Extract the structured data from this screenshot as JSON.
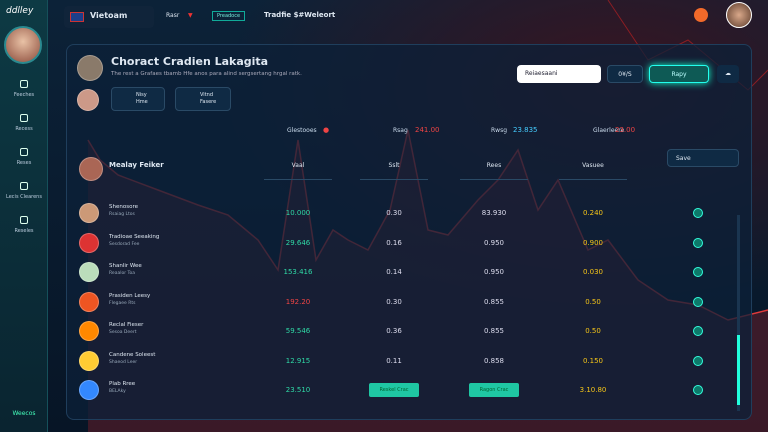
{
  "sidebar": {
    "logo": "ddlley",
    "nav": [
      "Feeches",
      "Recess",
      "Reses",
      "Lecis Clearens",
      "Reseles"
    ],
    "footer": "Weecos"
  },
  "topbar": {
    "country": "Vietoam",
    "menu": "Rasr",
    "badge": "Preadoce",
    "title": "Tradfie $#Weleort"
  },
  "panel": {
    "title": "Choract Cradien Lakagita",
    "subtitle": "The rest a Grafaes tbamb Hfe anos para alind sergsertang hrgal ratk.",
    "chips": [
      {
        "label": "Nisy",
        "sub": "Hme"
      },
      {
        "label": "Vitnd",
        "sub": "Fasere"
      }
    ],
    "search": "Reiaesaani",
    "actions": [
      "0¥/S",
      "Rapy"
    ],
    "stats": [
      {
        "label": "Glestooes",
        "value": "●"
      },
      {
        "label": "Rsag",
        "value": "241.00"
      },
      {
        "label": "Rwsg",
        "value": "23.835"
      },
      {
        "label": "Glaerleere",
        "value": "23.00"
      }
    ],
    "table": {
      "title": "Mealay Feiker",
      "save": "Save",
      "columns": [
        "Vaal",
        "Sslt",
        "Rees",
        "Vasuee"
      ],
      "rows": [
        {
          "name": "Shenosore",
          "sub": "Rsaiag Ltos",
          "cells": [
            "10.000",
            "0.30",
            "83.930",
            "0.240"
          ]
        },
        {
          "name": "Tradioae Seeaking",
          "sub": "Sesdorad Fee",
          "cells": [
            "29.646",
            "0.16",
            "0.950",
            "0.900"
          ]
        },
        {
          "name": "Shanlir Wee",
          "sub": "Reaalor Toa",
          "cells": [
            "153.416",
            "0.14",
            "0.950",
            "0.030"
          ]
        },
        {
          "name": "Prasiden Leesy",
          "sub": "Flegaee Rts",
          "cells": [
            "192.20",
            "0.30",
            "0.855",
            "0.50"
          ]
        },
        {
          "name": "Reclal Fieser",
          "sub": "Sesoa Deert",
          "cells": [
            "59.546",
            "0.36",
            "0.855",
            "0.50"
          ]
        },
        {
          "name": "Candene Soleest",
          "sub": "Shaeod Leer",
          "cells": [
            "12.915",
            "0.11",
            "0.858",
            "0.150"
          ]
        },
        {
          "name": "Plab Rree",
          "sub": "BELAky",
          "cells": [
            "23.510",
            {
              "button": "Reskel Crac"
            },
            {
              "button": "Ragon Crac"
            },
            "3.10.80"
          ]
        }
      ]
    }
  }
}
